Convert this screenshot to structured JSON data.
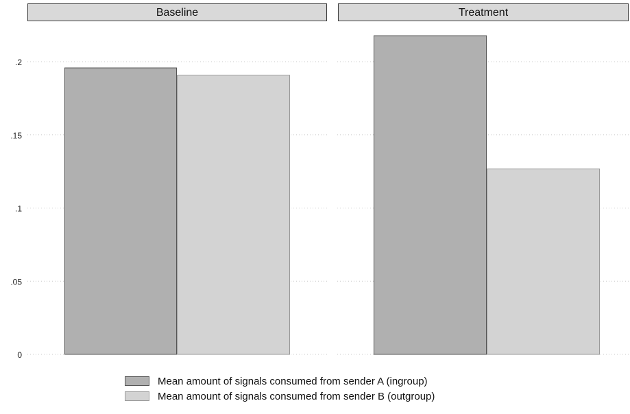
{
  "chart_data": {
    "type": "bar",
    "panels": [
      "Baseline",
      "Treatment"
    ],
    "series": [
      {
        "name": "Mean amount of signals consumed from sender A (ingroup)",
        "values": [
          0.196,
          0.218
        ],
        "color": "#b0b0b0"
      },
      {
        "name": "Mean amount of signals consumed from sender B (outgroup)",
        "values": [
          0.191,
          0.127
        ],
        "color": "#d3d3d3"
      }
    ],
    "ylim": [
      0,
      0.2
    ],
    "yticks": [
      {
        "value": 0,
        "label": "0"
      },
      {
        "value": 0.05,
        "label": ".05"
      },
      {
        "value": 0.1,
        "label": ".1"
      },
      {
        "value": 0.15,
        "label": ".15"
      },
      {
        "value": 0.2,
        "label": ".2"
      }
    ],
    "grid": true,
    "legend_position": "bottom"
  }
}
